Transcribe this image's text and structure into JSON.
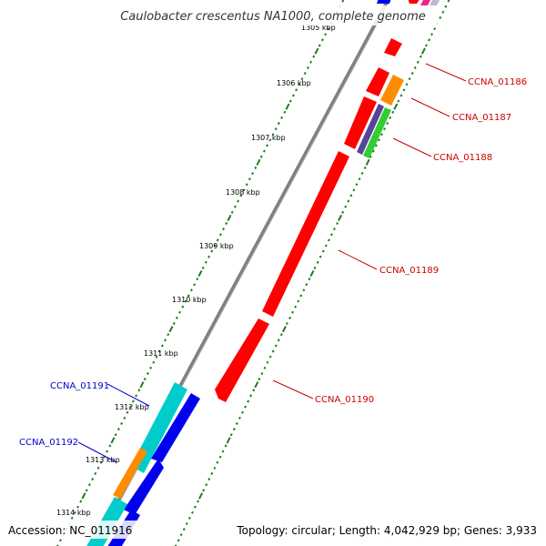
{
  "title": "Caulobacter crescentus NA1000, complete genome",
  "footer": {
    "accession": "Accession: NC_011916",
    "topology": "Topology: circular; Length: 4,042,929 bp; Genes: 3,933"
  },
  "colors": {
    "backbone": "#808080",
    "ticks": "#1e7d1e",
    "plus_strand_label": "#cc0000",
    "minus_strand_label": "#0000cc",
    "red": "#ff0000",
    "orange": "#ff8c00",
    "purple": "#554499",
    "green": "#33cc33",
    "cyan": "#00cccc",
    "blue": "#0000ee",
    "magenta": "#ee2288"
  },
  "kbp_labels": [
    "1305 kbp",
    "1306 kbp",
    "1307 kbp",
    "1308 kbp",
    "1309 kbp",
    "1310 kbp",
    "1311 kbp",
    "1312 kbp",
    "1313 kbp",
    "1314 kbp"
  ],
  "gene_labels": [
    {
      "name": "CCNA_01186",
      "strand": "plus"
    },
    {
      "name": "CCNA_01187",
      "strand": "plus"
    },
    {
      "name": "CCNA_01188",
      "strand": "plus"
    },
    {
      "name": "CCNA_01189",
      "strand": "plus"
    },
    {
      "name": "CCNA_01190",
      "strand": "plus"
    },
    {
      "name": "CCNA_01191",
      "strand": "minus"
    },
    {
      "name": "CCNA_01192",
      "strand": "minus"
    }
  ]
}
